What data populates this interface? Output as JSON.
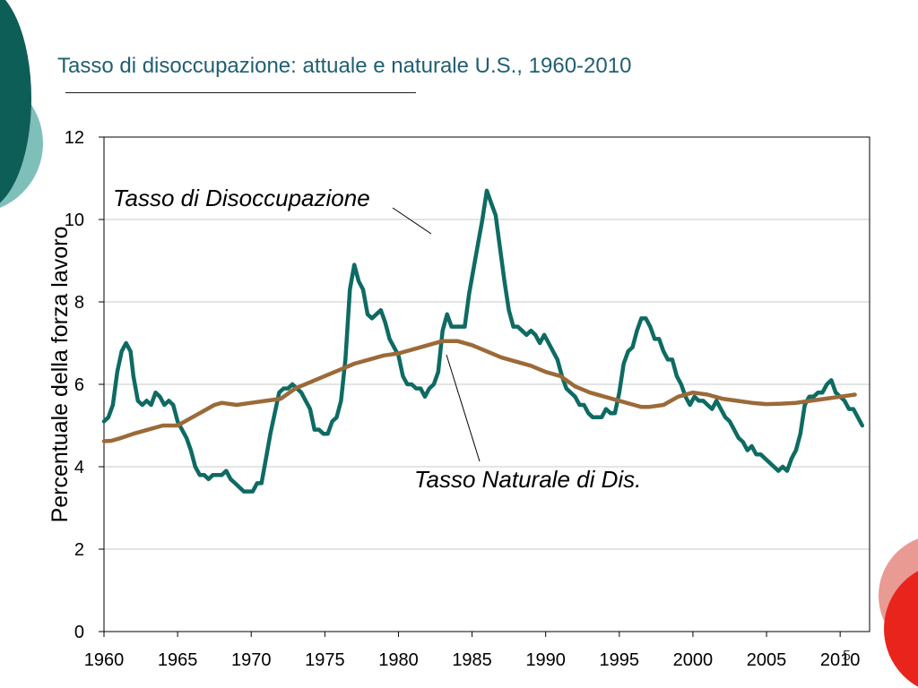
{
  "slide": {
    "title": "Tasso di disoccupazione: attuale e naturale U.S., 1960-2010",
    "page_number": "5",
    "colors": {
      "title": "#1f5f73",
      "deco_dark_teal": "#0d5e57",
      "deco_light_teal": "#7fbfba",
      "deco_red": "#e8241c",
      "deco_pink": "#e89a93"
    }
  },
  "chart_data": {
    "type": "line",
    "title": "",
    "xlabel": "",
    "ylabel": "Percentuale della forza lavoro",
    "xlim": [
      1960,
      2012
    ],
    "ylim": [
      0,
      12
    ],
    "x_ticks": [
      1960,
      1965,
      1970,
      1975,
      1980,
      1985,
      1990,
      1995,
      2000,
      2005,
      2010
    ],
    "y_ticks": [
      0,
      2,
      4,
      6,
      8,
      10,
      12
    ],
    "grid": "horizontal",
    "legend": "none",
    "annotations": [
      {
        "text": "Tasso di Disoccupazione",
        "series": 0
      },
      {
        "text": "Tasso Naturale di Dis.",
        "series": 1
      }
    ],
    "series": [
      {
        "name": "Tasso di Disoccupazione",
        "color": "#0e6b63",
        "points": [
          [
            1960.0,
            5.1
          ],
          [
            1960.3,
            5.2
          ],
          [
            1960.6,
            5.5
          ],
          [
            1960.9,
            6.3
          ],
          [
            1961.2,
            6.8
          ],
          [
            1961.5,
            7.0
          ],
          [
            1961.8,
            6.8
          ],
          [
            1962.0,
            6.2
          ],
          [
            1962.3,
            5.6
          ],
          [
            1962.6,
            5.5
          ],
          [
            1962.9,
            5.6
          ],
          [
            1963.2,
            5.5
          ],
          [
            1963.5,
            5.8
          ],
          [
            1963.8,
            5.7
          ],
          [
            1964.1,
            5.5
          ],
          [
            1964.4,
            5.6
          ],
          [
            1964.7,
            5.5
          ],
          [
            1965.0,
            5.1
          ],
          [
            1965.3,
            4.9
          ],
          [
            1965.6,
            4.7
          ],
          [
            1965.9,
            4.4
          ],
          [
            1966.2,
            4.0
          ],
          [
            1966.5,
            3.8
          ],
          [
            1966.8,
            3.8
          ],
          [
            1967.1,
            3.7
          ],
          [
            1967.4,
            3.8
          ],
          [
            1967.7,
            3.8
          ],
          [
            1968.0,
            3.8
          ],
          [
            1968.3,
            3.9
          ],
          [
            1968.6,
            3.7
          ],
          [
            1968.9,
            3.6
          ],
          [
            1969.2,
            3.5
          ],
          [
            1969.5,
            3.4
          ],
          [
            1969.8,
            3.4
          ],
          [
            1970.1,
            3.4
          ],
          [
            1970.4,
            3.6
          ],
          [
            1970.7,
            3.6
          ],
          [
            1971.0,
            4.2
          ],
          [
            1971.3,
            4.8
          ],
          [
            1971.6,
            5.3
          ],
          [
            1971.9,
            5.8
          ],
          [
            1972.2,
            5.9
          ],
          [
            1972.5,
            5.9
          ],
          [
            1972.8,
            6.0
          ],
          [
            1973.1,
            5.9
          ],
          [
            1973.4,
            5.8
          ],
          [
            1973.7,
            5.6
          ],
          [
            1974.0,
            5.4
          ],
          [
            1974.3,
            4.9
          ],
          [
            1974.6,
            4.9
          ],
          [
            1974.9,
            4.8
          ],
          [
            1975.2,
            4.8
          ],
          [
            1975.5,
            5.1
          ],
          [
            1975.8,
            5.2
          ],
          [
            1976.1,
            5.6
          ],
          [
            1976.4,
            6.6
          ],
          [
            1976.7,
            8.3
          ],
          [
            1977.0,
            8.9
          ],
          [
            1977.3,
            8.5
          ],
          [
            1977.6,
            8.3
          ],
          [
            1977.9,
            7.7
          ],
          [
            1978.2,
            7.6
          ],
          [
            1978.5,
            7.7
          ],
          [
            1978.8,
            7.8
          ],
          [
            1979.1,
            7.5
          ],
          [
            1979.4,
            7.1
          ],
          [
            1979.7,
            6.9
          ],
          [
            1980.0,
            6.7
          ],
          [
            1980.3,
            6.2
          ],
          [
            1980.6,
            6.0
          ],
          [
            1980.9,
            6.0
          ],
          [
            1981.2,
            5.9
          ],
          [
            1981.5,
            5.9
          ],
          [
            1981.8,
            5.7
          ],
          [
            1982.1,
            5.9
          ],
          [
            1982.4,
            6.0
          ],
          [
            1982.7,
            6.3
          ],
          [
            1983.0,
            7.3
          ],
          [
            1983.3,
            7.7
          ],
          [
            1983.6,
            7.4
          ],
          [
            1983.9,
            7.4
          ],
          [
            1984.2,
            7.4
          ],
          [
            1984.5,
            7.4
          ],
          [
            1984.8,
            8.2
          ],
          [
            1985.1,
            8.8
          ],
          [
            1985.4,
            9.4
          ],
          [
            1985.7,
            10.0
          ],
          [
            1986.0,
            10.7
          ],
          [
            1986.3,
            10.4
          ],
          [
            1986.6,
            10.1
          ],
          [
            1986.9,
            9.3
          ],
          [
            1987.2,
            8.5
          ],
          [
            1987.5,
            7.8
          ],
          [
            1987.8,
            7.4
          ],
          [
            1988.1,
            7.4
          ],
          [
            1988.4,
            7.3
          ],
          [
            1988.7,
            7.2
          ],
          [
            1989.0,
            7.3
          ],
          [
            1989.3,
            7.2
          ],
          [
            1989.6,
            7.0
          ],
          [
            1989.9,
            7.2
          ],
          [
            1990.2,
            7.0
          ],
          [
            1990.5,
            6.8
          ],
          [
            1990.8,
            6.6
          ],
          [
            1991.1,
            6.2
          ],
          [
            1991.4,
            5.9
          ],
          [
            1991.7,
            5.8
          ],
          [
            1992.0,
            5.7
          ],
          [
            1992.3,
            5.5
          ],
          [
            1992.6,
            5.5
          ],
          [
            1992.9,
            5.3
          ],
          [
            1993.2,
            5.2
          ],
          [
            1993.5,
            5.2
          ],
          [
            1993.8,
            5.2
          ],
          [
            1994.1,
            5.4
          ],
          [
            1994.4,
            5.3
          ],
          [
            1994.7,
            5.3
          ],
          [
            1995.0,
            5.8
          ],
          [
            1995.3,
            6.5
          ],
          [
            1995.6,
            6.8
          ],
          [
            1995.9,
            6.9
          ],
          [
            1996.2,
            7.3
          ],
          [
            1996.5,
            7.6
          ],
          [
            1996.8,
            7.6
          ],
          [
            1997.1,
            7.4
          ],
          [
            1997.4,
            7.1
          ],
          [
            1997.7,
            7.1
          ],
          [
            1998.0,
            6.8
          ],
          [
            1998.3,
            6.6
          ],
          [
            1998.6,
            6.6
          ],
          [
            1998.9,
            6.2
          ],
          [
            1999.2,
            6.0
          ],
          [
            1999.5,
            5.7
          ],
          [
            1999.8,
            5.5
          ],
          [
            2000.1,
            5.7
          ],
          [
            2000.4,
            5.6
          ],
          [
            2000.7,
            5.6
          ],
          [
            2001.0,
            5.5
          ],
          [
            2001.3,
            5.4
          ],
          [
            2001.6,
            5.6
          ],
          [
            2001.9,
            5.4
          ],
          [
            2002.2,
            5.2
          ],
          [
            2002.5,
            5.1
          ],
          [
            2002.8,
            4.9
          ],
          [
            2003.1,
            4.7
          ],
          [
            2003.4,
            4.6
          ],
          [
            2003.7,
            4.4
          ],
          [
            2004.0,
            4.5
          ],
          [
            2004.3,
            4.3
          ],
          [
            2004.6,
            4.3
          ],
          [
            2004.9,
            4.2
          ],
          [
            2005.2,
            4.1
          ],
          [
            2005.5,
            4.0
          ],
          [
            2005.8,
            3.9
          ],
          [
            2006.1,
            4.0
          ],
          [
            2006.4,
            3.9
          ],
          [
            2006.7,
            4.2
          ],
          [
            2007.0,
            4.4
          ],
          [
            2007.3,
            4.8
          ],
          [
            2007.6,
            5.5
          ],
          [
            2007.9,
            5.7
          ],
          [
            2008.2,
            5.7
          ],
          [
            2008.5,
            5.8
          ],
          [
            2008.8,
            5.8
          ],
          [
            2009.1,
            6.0
          ],
          [
            2009.4,
            6.1
          ],
          [
            2009.7,
            5.8
          ],
          [
            2010.0,
            5.7
          ],
          [
            2010.3,
            5.6
          ],
          [
            2010.6,
            5.4
          ],
          [
            2010.9,
            5.4
          ],
          [
            2011.2,
            5.2
          ],
          [
            2011.5,
            5.0
          ]
        ]
      },
      {
        "name": "Tasso Naturale di Dis.",
        "color": "#9b6a38",
        "points": [
          [
            1960.0,
            4.62
          ],
          [
            1960.5,
            4.63
          ],
          [
            1961.0,
            4.68
          ],
          [
            1962.0,
            4.8
          ],
          [
            1963.0,
            4.9
          ],
          [
            1964.0,
            5.0
          ],
          [
            1965.0,
            5.0
          ],
          [
            1966.0,
            5.2
          ],
          [
            1967.0,
            5.4
          ],
          [
            1967.5,
            5.5
          ],
          [
            1968.0,
            5.55
          ],
          [
            1969.0,
            5.5
          ],
          [
            1970.0,
            5.55
          ],
          [
            1971.0,
            5.6
          ],
          [
            1972.0,
            5.65
          ],
          [
            1973.0,
            5.9
          ],
          [
            1974.0,
            6.05
          ],
          [
            1975.0,
            6.2
          ],
          [
            1976.0,
            6.35
          ],
          [
            1977.0,
            6.5
          ],
          [
            1978.0,
            6.6
          ],
          [
            1979.0,
            6.7
          ],
          [
            1980.0,
            6.75
          ],
          [
            1981.0,
            6.85
          ],
          [
            1982.0,
            6.95
          ],
          [
            1983.0,
            7.05
          ],
          [
            1984.0,
            7.05
          ],
          [
            1985.0,
            6.95
          ],
          [
            1986.0,
            6.8
          ],
          [
            1987.0,
            6.65
          ],
          [
            1988.0,
            6.55
          ],
          [
            1989.0,
            6.45
          ],
          [
            1990.0,
            6.3
          ],
          [
            1991.0,
            6.2
          ],
          [
            1992.0,
            5.95
          ],
          [
            1993.0,
            5.8
          ],
          [
            1994.0,
            5.7
          ],
          [
            1995.0,
            5.6
          ],
          [
            1996.0,
            5.5
          ],
          [
            1996.5,
            5.45
          ],
          [
            1997.0,
            5.45
          ],
          [
            1998.0,
            5.5
          ],
          [
            1999.0,
            5.7
          ],
          [
            2000.0,
            5.8
          ],
          [
            2001.0,
            5.75
          ],
          [
            2002.0,
            5.65
          ],
          [
            2003.0,
            5.6
          ],
          [
            2004.0,
            5.55
          ],
          [
            2005.0,
            5.52
          ],
          [
            2006.0,
            5.53
          ],
          [
            2007.0,
            5.55
          ],
          [
            2008.0,
            5.6
          ],
          [
            2009.0,
            5.65
          ],
          [
            2010.0,
            5.7
          ],
          [
            2011.0,
            5.75
          ]
        ]
      }
    ]
  }
}
